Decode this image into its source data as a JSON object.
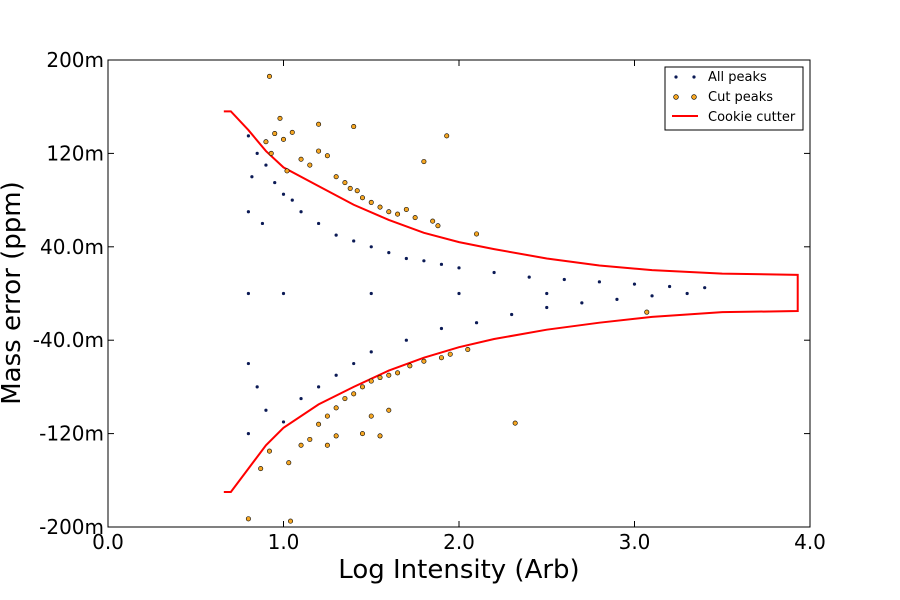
{
  "chart_data": {
    "type": "scatter",
    "xlabel": "Log Intensity (Arb)",
    "ylabel": "Mass error (ppm)",
    "xlim": [
      0.0,
      4.0
    ],
    "ylim": [
      -200,
      200
    ],
    "x_ticks": [
      {
        "value": 0.0,
        "label": "0.0"
      },
      {
        "value": 1.0,
        "label": "1.0"
      },
      {
        "value": 2.0,
        "label": "2.0"
      },
      {
        "value": 3.0,
        "label": "3.0"
      },
      {
        "value": 4.0,
        "label": "4.0"
      }
    ],
    "y_ticks": [
      {
        "value": 200,
        "label": "200m"
      },
      {
        "value": 120,
        "label": "120m"
      },
      {
        "value": 40,
        "label": "40.0m"
      },
      {
        "value": -40,
        "label": "-40.0m"
      },
      {
        "value": -120,
        "label": "-120m"
      },
      {
        "value": -200,
        "label": "-200m"
      }
    ],
    "grid": false,
    "legend_position": "top-right",
    "series": [
      {
        "name": "All peaks",
        "kind": "scatter",
        "color": "#0b1a55",
        "marker": "dot",
        "points": [
          [
            0.8,
            135
          ],
          [
            0.85,
            120
          ],
          [
            0.82,
            100
          ],
          [
            0.9,
            110
          ],
          [
            0.95,
            95
          ],
          [
            1.0,
            85
          ],
          [
            0.8,
            70
          ],
          [
            0.88,
            60
          ],
          [
            1.05,
            80
          ],
          [
            1.1,
            70
          ],
          [
            1.2,
            60
          ],
          [
            1.3,
            50
          ],
          [
            1.4,
            45
          ],
          [
            1.5,
            40
          ],
          [
            1.6,
            35
          ],
          [
            1.7,
            30
          ],
          [
            1.8,
            28
          ],
          [
            1.9,
            25
          ],
          [
            2.0,
            22
          ],
          [
            2.2,
            18
          ],
          [
            2.4,
            14
          ],
          [
            2.6,
            12
          ],
          [
            2.8,
            10
          ],
          [
            3.0,
            8
          ],
          [
            3.2,
            6
          ],
          [
            3.4,
            5
          ],
          [
            0.8,
            -60
          ],
          [
            0.85,
            -80
          ],
          [
            0.9,
            -100
          ],
          [
            1.0,
            -110
          ],
          [
            0.8,
            -120
          ],
          [
            1.1,
            -90
          ],
          [
            1.2,
            -80
          ],
          [
            1.3,
            -70
          ],
          [
            1.4,
            -60
          ],
          [
            1.5,
            -50
          ],
          [
            1.7,
            -40
          ],
          [
            1.9,
            -30
          ],
          [
            2.1,
            -25
          ],
          [
            2.3,
            -18
          ],
          [
            2.5,
            -12
          ],
          [
            2.7,
            -8
          ],
          [
            2.9,
            -5
          ],
          [
            3.1,
            -2
          ],
          [
            3.3,
            0
          ],
          [
            0.8,
            0
          ],
          [
            1.0,
            0
          ],
          [
            1.5,
            0
          ],
          [
            2.0,
            0
          ],
          [
            2.5,
            0
          ]
        ]
      },
      {
        "name": "Cut peaks",
        "kind": "scatter",
        "color": "#f5a623",
        "edge_color": "#000000",
        "marker": "circle",
        "points": [
          [
            0.92,
            186
          ],
          [
            0.98,
            150
          ],
          [
            1.2,
            145
          ],
          [
            1.4,
            143
          ],
          [
            1.93,
            135
          ],
          [
            1.8,
            113
          ],
          [
            0.9,
            130
          ],
          [
            0.95,
            137
          ],
          [
            1.0,
            132
          ],
          [
            1.05,
            138
          ],
          [
            0.93,
            120
          ],
          [
            1.02,
            105
          ],
          [
            1.1,
            115
          ],
          [
            1.15,
            110
          ],
          [
            1.2,
            122
          ],
          [
            1.25,
            118
          ],
          [
            1.3,
            100
          ],
          [
            1.35,
            95
          ],
          [
            1.38,
            90
          ],
          [
            1.42,
            88
          ],
          [
            1.45,
            82
          ],
          [
            1.5,
            78
          ],
          [
            1.55,
            74
          ],
          [
            1.6,
            70
          ],
          [
            1.65,
            68
          ],
          [
            1.7,
            72
          ],
          [
            1.75,
            65
          ],
          [
            1.85,
            62
          ],
          [
            1.88,
            58
          ],
          [
            2.1,
            51
          ],
          [
            0.87,
            -150
          ],
          [
            0.92,
            -135
          ],
          [
            1.03,
            -145
          ],
          [
            1.1,
            -130
          ],
          [
            1.15,
            -125
          ],
          [
            1.2,
            -112
          ],
          [
            1.25,
            -105
          ],
          [
            1.3,
            -98
          ],
          [
            1.35,
            -90
          ],
          [
            1.4,
            -86
          ],
          [
            1.45,
            -80
          ],
          [
            1.5,
            -75
          ],
          [
            1.55,
            -72
          ],
          [
            1.6,
            -70
          ],
          [
            1.65,
            -68
          ],
          [
            1.72,
            -62
          ],
          [
            1.8,
            -58
          ],
          [
            1.9,
            -55
          ],
          [
            1.95,
            -52
          ],
          [
            2.05,
            -48
          ],
          [
            1.3,
            -122
          ],
          [
            1.45,
            -120
          ],
          [
            1.55,
            -122
          ],
          [
            1.5,
            -105
          ],
          [
            1.6,
            -100
          ],
          [
            2.32,
            -111
          ],
          [
            3.07,
            -16
          ],
          [
            0.8,
            -193
          ],
          [
            1.04,
            -195
          ],
          [
            1.25,
            -130
          ]
        ]
      },
      {
        "name": "Cookie cutter",
        "kind": "line",
        "color": "#ff0000",
        "upper": [
          [
            0.66,
            156
          ],
          [
            0.7,
            156
          ],
          [
            0.8,
            140
          ],
          [
            0.9,
            122
          ],
          [
            1.0,
            108
          ],
          [
            1.2,
            92
          ],
          [
            1.4,
            76
          ],
          [
            1.6,
            63
          ],
          [
            1.8,
            52
          ],
          [
            2.0,
            44
          ],
          [
            2.2,
            38
          ],
          [
            2.5,
            30
          ],
          [
            2.8,
            24
          ],
          [
            3.1,
            20
          ],
          [
            3.5,
            17
          ],
          [
            3.93,
            16
          ]
        ],
        "lower": [
          [
            0.66,
            -170
          ],
          [
            0.7,
            -170
          ],
          [
            0.8,
            -150
          ],
          [
            0.9,
            -130
          ],
          [
            1.0,
            -115
          ],
          [
            1.2,
            -95
          ],
          [
            1.4,
            -80
          ],
          [
            1.6,
            -66
          ],
          [
            1.8,
            -55
          ],
          [
            2.0,
            -46
          ],
          [
            2.2,
            -39
          ],
          [
            2.5,
            -31
          ],
          [
            2.8,
            -25
          ],
          [
            3.1,
            -20
          ],
          [
            3.5,
            -16
          ],
          [
            3.93,
            -15
          ]
        ]
      }
    ]
  }
}
